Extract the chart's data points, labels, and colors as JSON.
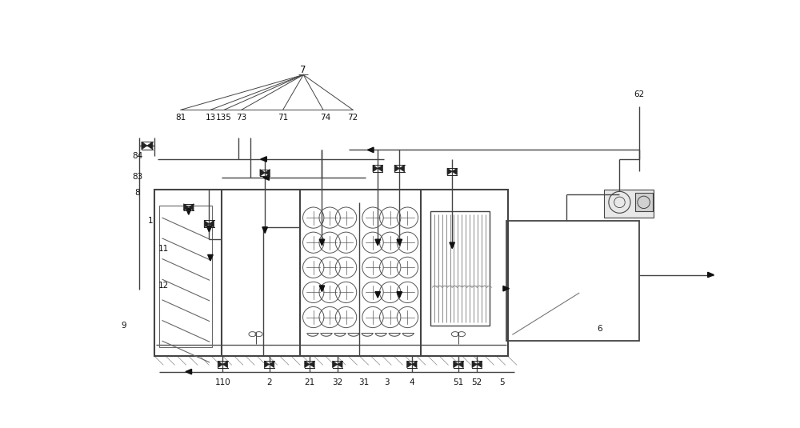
{
  "bg_color": "#ffffff",
  "lc": "#444444",
  "lw": 1.0,
  "fig_w": 10.0,
  "fig_h": 5.35,
  "dpi": 100
}
